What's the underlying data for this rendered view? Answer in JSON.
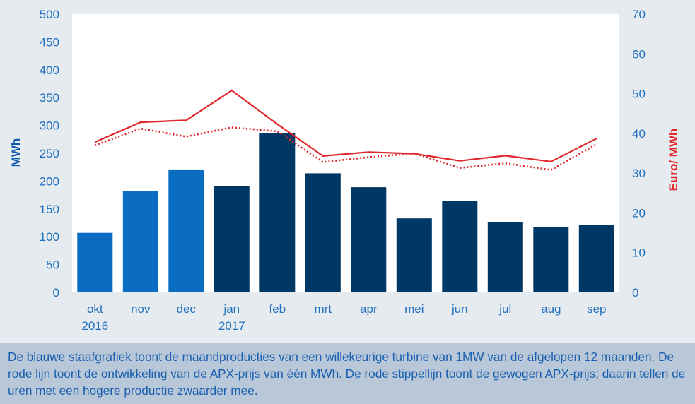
{
  "chart_data": {
    "type": "bar",
    "categories": [
      "okt\n2016",
      "nov",
      "dec",
      "jan\n2017",
      "feb",
      "mrt",
      "apr",
      "mei",
      "jun",
      "jul",
      "aug",
      "sep"
    ],
    "category_lines": [
      [
        "okt",
        "2016"
      ],
      [
        "nov"
      ],
      [
        "dec"
      ],
      [
        "jan",
        "2017"
      ],
      [
        "feb"
      ],
      [
        "mrt"
      ],
      [
        "apr"
      ],
      [
        "mei"
      ],
      [
        "jun"
      ],
      [
        "jul"
      ],
      [
        "aug"
      ],
      [
        "sep"
      ]
    ],
    "bars": {
      "axis": "left",
      "values": [
        107,
        182,
        221,
        191,
        286,
        214,
        189,
        133,
        164,
        126,
        118,
        121
      ],
      "colors": [
        "#0a6dc2",
        "#0a6dc2",
        "#0a6dc2",
        "#003865",
        "#003865",
        "#003865",
        "#003865",
        "#003865",
        "#003865",
        "#003865",
        "#003865",
        "#003865"
      ]
    },
    "series": [
      {
        "type": "line",
        "axis": "right",
        "style": "solid",
        "color": "#e0262b",
        "values": [
          37.8,
          42.8,
          43.3,
          50.8,
          42.3,
          34.3,
          35.3,
          34.9,
          33.1,
          34.4,
          32.9,
          38.7
        ]
      },
      {
        "type": "line",
        "axis": "right",
        "style": "dotted",
        "color": "#e0262b",
        "values": [
          37.0,
          41.2,
          39.2,
          41.5,
          40.5,
          32.8,
          34.0,
          35.0,
          31.3,
          32.5,
          30.8,
          37.3
        ]
      }
    ],
    "y_left": {
      "label": "MWh",
      "ylim": [
        0,
        500
      ],
      "ticks": [
        0,
        50,
        100,
        150,
        200,
        250,
        300,
        350,
        400,
        450,
        500
      ]
    },
    "y_right": {
      "label": "Euro/ MWh",
      "ylim": [
        0,
        70
      ],
      "ticks": [
        0,
        10,
        20,
        30,
        40,
        50,
        60,
        70
      ]
    },
    "grid": false
  },
  "caption": "De blauwe staafgrafiek toont de maandproducties van een willekeurige turbine van 1MW van de afgelopen 12 maanden. De rode lijn toont de ontwikkeling van de APX-prijs van één MWh. De rode stippellijn toont de gewogen APX-prijs; daarin tellen de uren met een hogere productie zwaarder mee."
}
